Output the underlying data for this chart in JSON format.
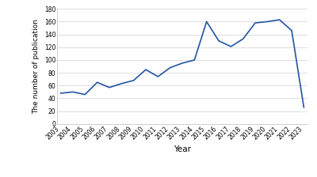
{
  "years": [
    2003,
    2004,
    2005,
    2006,
    2007,
    2008,
    2009,
    2010,
    2011,
    2012,
    2013,
    2014,
    2015,
    2016,
    2017,
    2018,
    2019,
    2020,
    2021,
    2022,
    2023
  ],
  "values": [
    48,
    50,
    46,
    65,
    57,
    63,
    68,
    85,
    74,
    88,
    95,
    100,
    160,
    130,
    121,
    133,
    158,
    160,
    163,
    146,
    26
  ],
  "line_color": "#2155a3",
  "line_width": 1.2,
  "xlabel": "Year",
  "ylabel": "The number of publication",
  "xlim_min": 2003,
  "xlim_max": 2023,
  "ylim_min": 0,
  "ylim_max": 180,
  "yticks": [
    0,
    20,
    40,
    60,
    80,
    100,
    120,
    140,
    160,
    180
  ],
  "background_color": "#ffffff",
  "grid_color": "#d0d0d0",
  "xlabel_fontsize": 7.5,
  "ylabel_fontsize": 6.5,
  "tick_fontsize": 5.5
}
